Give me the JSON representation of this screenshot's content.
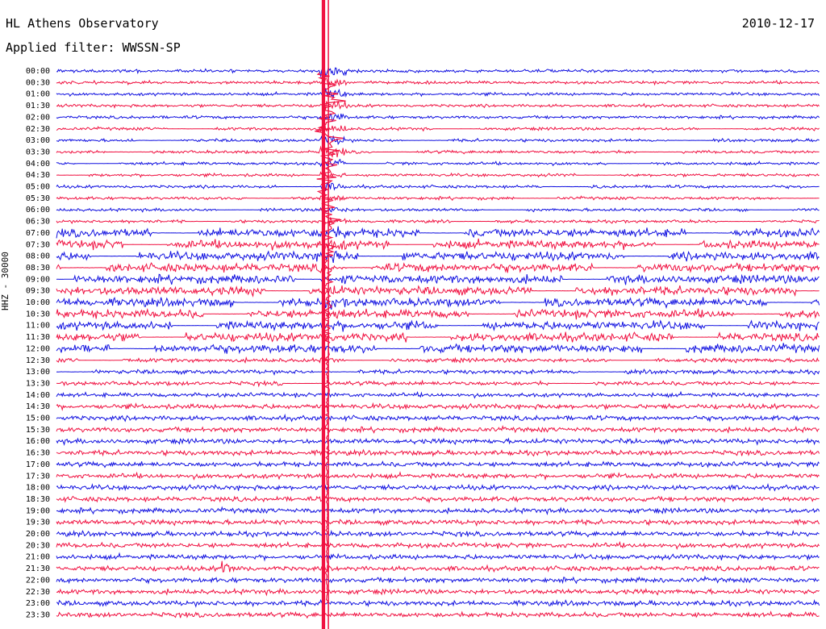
{
  "header": {
    "title": "HL Athens Observatory",
    "filter": "Applied filter: WWSSN-SP",
    "date": "2010-12-17"
  },
  "chart_data": {
    "type": "line",
    "title": "HL Athens Observatory",
    "subtitle": "Applied filter: WWSSN-SP",
    "date": "2010-12-17",
    "ylabel": "HHZ - 30000",
    "colors": {
      "even_rows": "#1010e0",
      "odd_rows": "#f01040"
    },
    "rows": [
      "00:00",
      "00:30",
      "01:00",
      "01:30",
      "02:00",
      "02:30",
      "03:00",
      "03:30",
      "04:00",
      "04:30",
      "05:00",
      "05:30",
      "06:00",
      "06:30",
      "07:00",
      "07:30",
      "08:00",
      "08:30",
      "09:00",
      "09:30",
      "10:00",
      "10:30",
      "11:00",
      "11:30",
      "12:00",
      "12:30",
      "13:00",
      "13:30",
      "14:00",
      "14:30",
      "15:00",
      "15:30",
      "16:00",
      "16:30",
      "17:00",
      "17:30",
      "18:00",
      "18:30",
      "19:00",
      "19:30",
      "20:00",
      "20:30",
      "21:00",
      "21:30",
      "22:00",
      "22:30",
      "23:00",
      "23:30"
    ],
    "x_minutes": [
      0,
      30
    ],
    "events": [
      {
        "row": "00:00",
        "minute": 10.5,
        "note": "large teleseismic event, coda visible through ~13:00"
      },
      {
        "row": "21:30",
        "minute": 6.5,
        "note": "local event burst"
      }
    ]
  }
}
